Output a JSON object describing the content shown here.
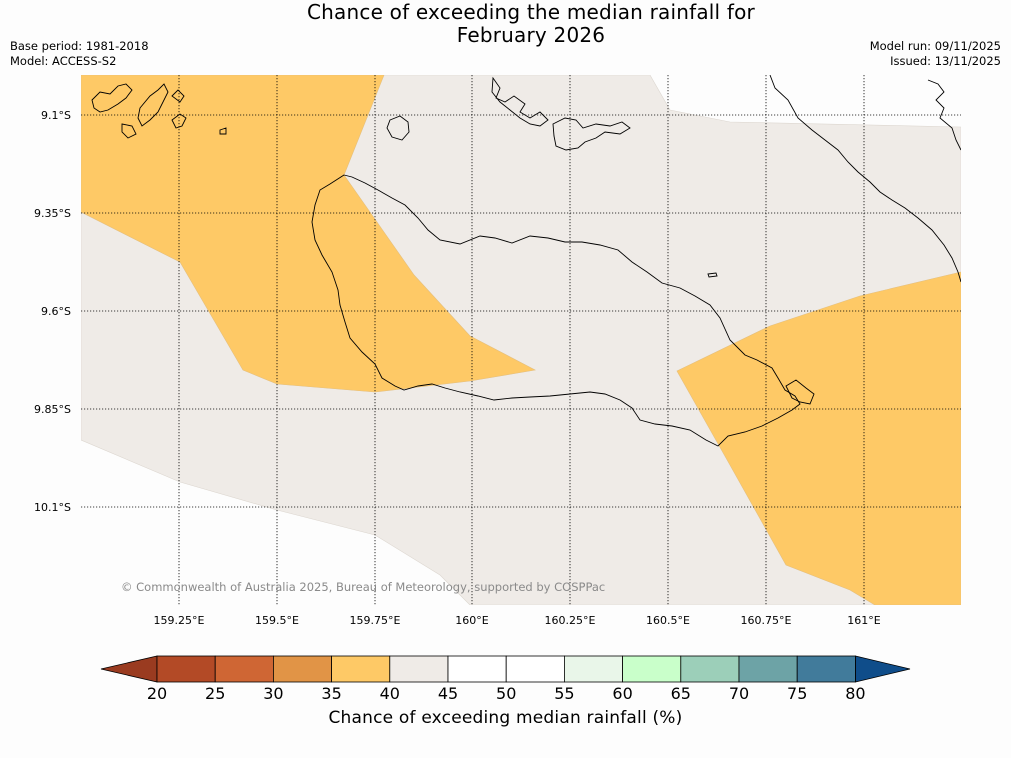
{
  "header": {
    "title_line1": "Chance of exceeding the median rainfall for",
    "title_line2": "February 2026",
    "base_period": "Base period: 1981-2018",
    "model": "Model: ACCESS-S2",
    "model_run": "Model run: 09/11/2025",
    "issued": "Issued: 13/11/2025"
  },
  "map": {
    "lat_ticks": [
      "9.1°S",
      "9.35°S",
      "9.6°S",
      "9.85°S",
      "10.1°S"
    ],
    "lon_ticks": [
      "159.25°E",
      "159.5°E",
      "159.75°E",
      "160°E",
      "160.25°E",
      "160.5°E",
      "160.75°E",
      "161°E"
    ],
    "copyright": "© Commonwealth of Australia 2025, Bureau of Meteorology, supported by COSPPac",
    "regions": [
      {
        "category": "35-40",
        "color": "#fec966"
      },
      {
        "category": "40-45",
        "color": "#efebe7"
      },
      {
        "category": "45-50",
        "color": "#fdfdfd"
      }
    ]
  },
  "colorbar": {
    "title": "Chance of exceeding median rainfall (%)",
    "labels": [
      "20",
      "25",
      "30",
      "35",
      "40",
      "45",
      "50",
      "55",
      "60",
      "65",
      "70",
      "75",
      "80"
    ],
    "under_color": "#9a3b20",
    "over_color": "#0f4d8a",
    "colors": [
      "#b34a26",
      "#cf6634",
      "#e19446",
      "#fec966",
      "#efebe7",
      "#ffffff",
      "#ffffff",
      "#e9f6e9",
      "#c9ffca",
      "#9ccfb9",
      "#6da3a6",
      "#417b9b"
    ]
  }
}
